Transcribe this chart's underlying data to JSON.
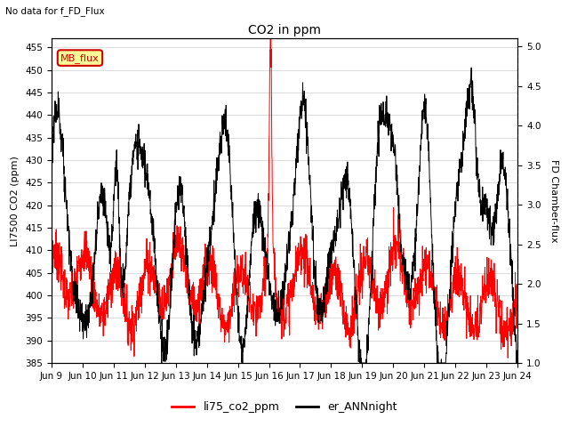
{
  "title": "CO2 in ppm",
  "subtitle": "No data for f_FD_Flux",
  "ylabel_left": "LI7500 CO2 (ppm)",
  "ylabel_right": "FD Chamber-flux",
  "ylim_left": [
    385,
    457
  ],
  "ylim_right": [
    1.0,
    5.1
  ],
  "yticks_left": [
    385,
    390,
    395,
    400,
    405,
    410,
    415,
    420,
    425,
    430,
    435,
    440,
    445,
    450,
    455
  ],
  "yticks_right": [
    1.0,
    1.5,
    2.0,
    2.5,
    3.0,
    3.5,
    4.0,
    4.5,
    5.0
  ],
  "xtick_labels": [
    "Jun 9",
    "Jun 10",
    "Jun 11",
    "Jun 12",
    "Jun 13",
    "Jun 14",
    "Jun 15",
    "Jun 16",
    "Jun 17",
    "Jun 18",
    "Jun 19",
    "Jun 20",
    "Jun 21",
    "Jun 22",
    "Jun 23",
    "Jun 24"
  ],
  "legend_labels": [
    "li75_co2_ppm",
    "er_ANNnight"
  ],
  "legend_colors": [
    "red",
    "black"
  ],
  "mb_flux_box_color": "#ffff99",
  "mb_flux_text_color": "#cc0000",
  "mb_flux_border_color": "#cc0000",
  "color_red": "#ff0000",
  "color_black": "#000000",
  "background_color": "#ffffff",
  "grid_color": "#cccccc"
}
